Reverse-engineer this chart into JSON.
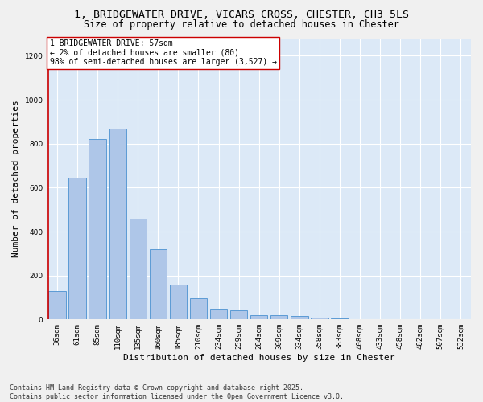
{
  "title1": "1, BRIDGEWATER DRIVE, VICARS CROSS, CHESTER, CH3 5LS",
  "title2": "Size of property relative to detached houses in Chester",
  "xlabel": "Distribution of detached houses by size in Chester",
  "ylabel": "Number of detached properties",
  "categories": [
    "36sqm",
    "61sqm",
    "85sqm",
    "110sqm",
    "135sqm",
    "160sqm",
    "185sqm",
    "210sqm",
    "234sqm",
    "259sqm",
    "284sqm",
    "309sqm",
    "334sqm",
    "358sqm",
    "383sqm",
    "408sqm",
    "433sqm",
    "458sqm",
    "482sqm",
    "507sqm",
    "532sqm"
  ],
  "values": [
    130,
    645,
    820,
    870,
    460,
    320,
    160,
    95,
    50,
    40,
    20,
    18,
    15,
    10,
    5,
    3,
    2,
    2,
    1,
    1,
    1
  ],
  "bar_color": "#aec6e8",
  "bar_edge_color": "#5b9bd5",
  "highlight_line_color": "#cc0000",
  "annotation_text": "1 BRIDGEWATER DRIVE: 57sqm\n← 2% of detached houses are smaller (80)\n98% of semi-detached houses are larger (3,527) →",
  "annotation_box_color": "#ffffff",
  "annotation_box_edge": "#cc0000",
  "ylim": [
    0,
    1280
  ],
  "yticks": [
    0,
    200,
    400,
    600,
    800,
    1000,
    1200
  ],
  "bg_color": "#dce9f7",
  "fig_bg_color": "#f0f0f0",
  "grid_color": "#ffffff",
  "footnote": "Contains HM Land Registry data © Crown copyright and database right 2025.\nContains public sector information licensed under the Open Government Licence v3.0.",
  "title1_fontsize": 9.5,
  "title2_fontsize": 8.5,
  "xlabel_fontsize": 8,
  "ylabel_fontsize": 8,
  "tick_fontsize": 6.5,
  "annotation_fontsize": 7,
  "footnote_fontsize": 6
}
